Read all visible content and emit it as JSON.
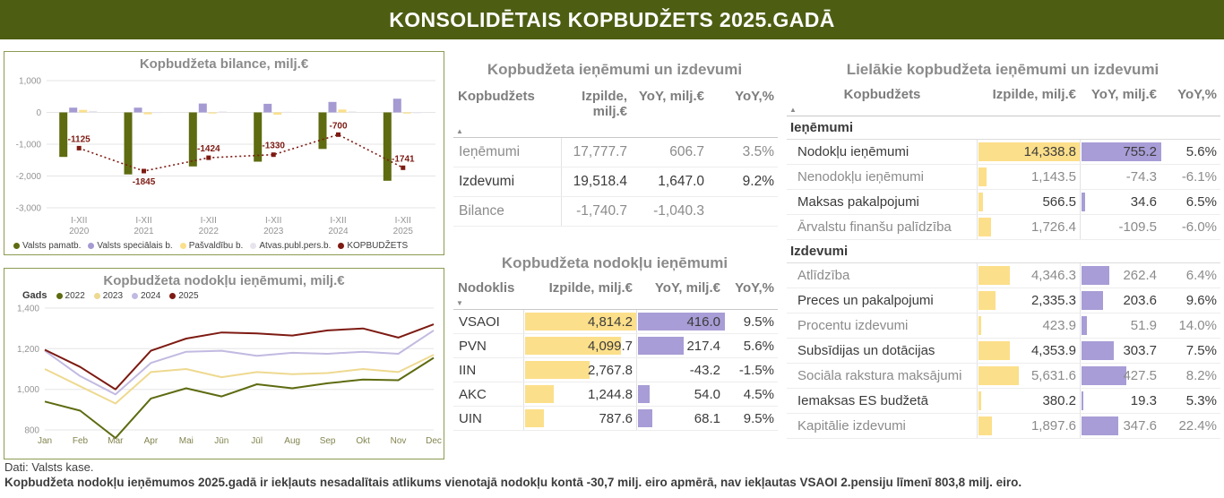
{
  "header": {
    "title": "KONSOLIDĒTAIS KOPBUDŽETS 2025.GADĀ",
    "background": "#4d5e13"
  },
  "icons": {
    "sort_asc": "▲",
    "sort_desc": "▼"
  },
  "colors": {
    "olive": "#5e6b10",
    "purple": "#a59ad2",
    "yellow": "#fbdf8a",
    "pale_gray": "#e7e4ed",
    "dark_red": "#7d1a12",
    "table_bar_yellow": "#fcdf8a",
    "table_bar_purple": "#a89dd6"
  },
  "chart_data": [
    {
      "type": "bar+line",
      "title": "Kopbudžeta bilance, milj.€",
      "period_label": "I-XII",
      "categories": [
        "2020",
        "2021",
        "2022",
        "2023",
        "2024",
        "2025"
      ],
      "ylim": [
        -3000,
        1000
      ],
      "yticks": [
        1000,
        0,
        -1000,
        -2000,
        -3000
      ],
      "series": [
        {
          "name": "Valsts pamatb.",
          "color": "#5e6b10",
          "values": [
            -1400,
            -1950,
            -1700,
            -1550,
            -1150,
            -2150
          ]
        },
        {
          "name": "Valsts speciālais b.",
          "color": "#a59ad2",
          "values": [
            150,
            150,
            280,
            270,
            330,
            430
          ]
        },
        {
          "name": "Pašvaldību b.",
          "color": "#fbdf8a",
          "values": [
            80,
            -60,
            -35,
            -70,
            90,
            -30
          ]
        },
        {
          "name": "Atvas.publ.pers.b.",
          "color": "#e7e4ed",
          "values": [
            45,
            15,
            31,
            20,
            30,
            9
          ]
        }
      ],
      "line": {
        "name": "KOPBUDŽETS",
        "color": "#7d1a12",
        "values": [
          -1125,
          -1845,
          -1424,
          -1330,
          -700,
          -1741
        ],
        "labels": [
          "-1125",
          "-1845",
          "-1424",
          "-1330",
          "-700",
          "-1741"
        ]
      }
    },
    {
      "type": "line",
      "title": "Kopbudžeta nodokļu ieņēmumi, milj.€",
      "legend_title": "Gads",
      "x": [
        "Jan",
        "Feb",
        "Mar",
        "Apr",
        "Mai",
        "Jūn",
        "Jūl",
        "Aug",
        "Sep",
        "Okt",
        "Nov",
        "Dec"
      ],
      "ylim": [
        800,
        1400
      ],
      "yticks": [
        800,
        1000,
        1200,
        1400
      ],
      "series": [
        {
          "name": "2022",
          "color": "#5e6b10",
          "values": [
            940,
            895,
            760,
            955,
            1005,
            965,
            1025,
            1005,
            1030,
            1048,
            1045,
            1155
          ]
        },
        {
          "name": "2023",
          "color": "#eed990",
          "values": [
            1100,
            1015,
            930,
            1085,
            1100,
            1060,
            1085,
            1075,
            1080,
            1100,
            1085,
            1170
          ]
        },
        {
          "name": "2024",
          "color": "#c2bae1",
          "values": [
            1190,
            1065,
            975,
            1130,
            1185,
            1190,
            1165,
            1180,
            1175,
            1185,
            1175,
            1290
          ]
        },
        {
          "name": "2025",
          "color": "#7d1a12",
          "values": [
            1195,
            1110,
            1000,
            1190,
            1250,
            1280,
            1275,
            1265,
            1290,
            1300,
            1255,
            1320
          ]
        }
      ]
    }
  ],
  "summary_table": {
    "title": "Kopbudžeta ieņēmumi un izdevumi",
    "columns": [
      "Kopbudžets",
      "Izpilde, milj.€",
      "YoY, milj.€",
      "YoY,%"
    ],
    "rows": [
      {
        "label": "Ieņēmumi",
        "izpilde": "17,777.7",
        "yoy": "606.7",
        "pct": "3.5%"
      },
      {
        "label": "Izdevumi",
        "izpilde": "19,518.4",
        "yoy": "1,647.0",
        "pct": "9.2%"
      },
      {
        "label": "Bilance",
        "izpilde": "-1,740.7",
        "yoy": "-1,040.3",
        "pct": ""
      }
    ]
  },
  "tax_table": {
    "title": "Kopbudžeta nodokļu ieņēmumi",
    "columns": [
      "Nodoklis",
      "Izpilde, milj.€",
      "YoY, milj.€",
      "YoY,%"
    ],
    "rows": [
      {
        "label": "VSAOI",
        "izpilde": "4,814.2",
        "izpilde_val": 4814.2,
        "yoy": "416.0",
        "yoy_val": 416.0,
        "pct": "9.5%"
      },
      {
        "label": "PVN",
        "izpilde": "4,099.7",
        "izpilde_val": 4099.7,
        "yoy": "217.4",
        "yoy_val": 217.4,
        "pct": "5.6%"
      },
      {
        "label": "IIN",
        "izpilde": "2,767.8",
        "izpilde_val": 2767.8,
        "yoy": "-43.2",
        "yoy_val": -43.2,
        "pct": "-1.5%"
      },
      {
        "label": "AKC",
        "izpilde": "1,244.8",
        "izpilde_val": 1244.8,
        "yoy": "54.0",
        "yoy_val": 54.0,
        "pct": "4.5%"
      },
      {
        "label": "UIN",
        "izpilde": "787.6",
        "izpilde_val": 787.6,
        "yoy": "68.1",
        "yoy_val": 68.1,
        "pct": "9.5%"
      }
    ]
  },
  "breakdown_table": {
    "title": "Lielākie kopbudžeta ieņēmumi un izdevumi",
    "columns": [
      "Kopbudžets",
      "Izpilde, milj.€",
      "YoY, milj.€",
      "YoY,%"
    ],
    "sections": [
      {
        "name": "Ieņēmumi",
        "rows": [
          {
            "label": "Nodokļu ieņēmumi",
            "izpilde": "14,338.8",
            "izpilde_val": 14338.8,
            "yoy": "755.2",
            "yoy_val": 755.2,
            "pct": "5.6%"
          },
          {
            "label": "Nenodokļu ieņēmumi",
            "izpilde": "1,143.5",
            "izpilde_val": 1143.5,
            "yoy": "-74.3",
            "yoy_val": -74.3,
            "pct": "-6.1%"
          },
          {
            "label": "Maksas pakalpojumi",
            "izpilde": "566.5",
            "izpilde_val": 566.5,
            "yoy": "34.6",
            "yoy_val": 34.6,
            "pct": "6.5%"
          },
          {
            "label": "Ārvalstu finanšu palīdzība",
            "izpilde": "1,726.4",
            "izpilde_val": 1726.4,
            "yoy": "-109.5",
            "yoy_val": -109.5,
            "pct": "-6.0%"
          }
        ]
      },
      {
        "name": "Izdevumi",
        "rows": [
          {
            "label": "Atlīdzība",
            "izpilde": "4,346.3",
            "izpilde_val": 4346.3,
            "yoy": "262.4",
            "yoy_val": 262.4,
            "pct": "6.4%"
          },
          {
            "label": "Preces un pakalpojumi",
            "izpilde": "2,335.3",
            "izpilde_val": 2335.3,
            "yoy": "203.6",
            "yoy_val": 203.6,
            "pct": "9.6%"
          },
          {
            "label": "Procentu izdevumi",
            "izpilde": "423.9",
            "izpilde_val": 423.9,
            "yoy": "51.9",
            "yoy_val": 51.9,
            "pct": "14.0%"
          },
          {
            "label": "Subsīdijas un dotācijas",
            "izpilde": "4,353.9",
            "izpilde_val": 4353.9,
            "yoy": "303.7",
            "yoy_val": 303.7,
            "pct": "7.5%"
          },
          {
            "label": "Sociāla rakstura maksājumi",
            "izpilde": "5,631.6",
            "izpilde_val": 5631.6,
            "yoy": "427.5",
            "yoy_val": 427.5,
            "pct": "8.2%"
          },
          {
            "label": "Iemaksas ES budžetā",
            "izpilde": "380.2",
            "izpilde_val": 380.2,
            "yoy": "19.3",
            "yoy_val": 19.3,
            "pct": "5.3%"
          },
          {
            "label": "Kapitālie izdevumi",
            "izpilde": "1,897.6",
            "izpilde_val": 1897.6,
            "yoy": "347.6",
            "yoy_val": 347.6,
            "pct": "22.4%"
          }
        ]
      }
    ]
  },
  "footer": {
    "source": "Dati: Valsts kase.",
    "note": "Kopbudžeta nodokļu ieņēmumos 2025.gadā ir iekļauts nesadalītais atlikums vienotajā nodokļu kontā -30,7 milj. eiro apmērā, nav iekļautas VSAOI 2.pensiju līmenī 803,8 milj. eiro."
  }
}
